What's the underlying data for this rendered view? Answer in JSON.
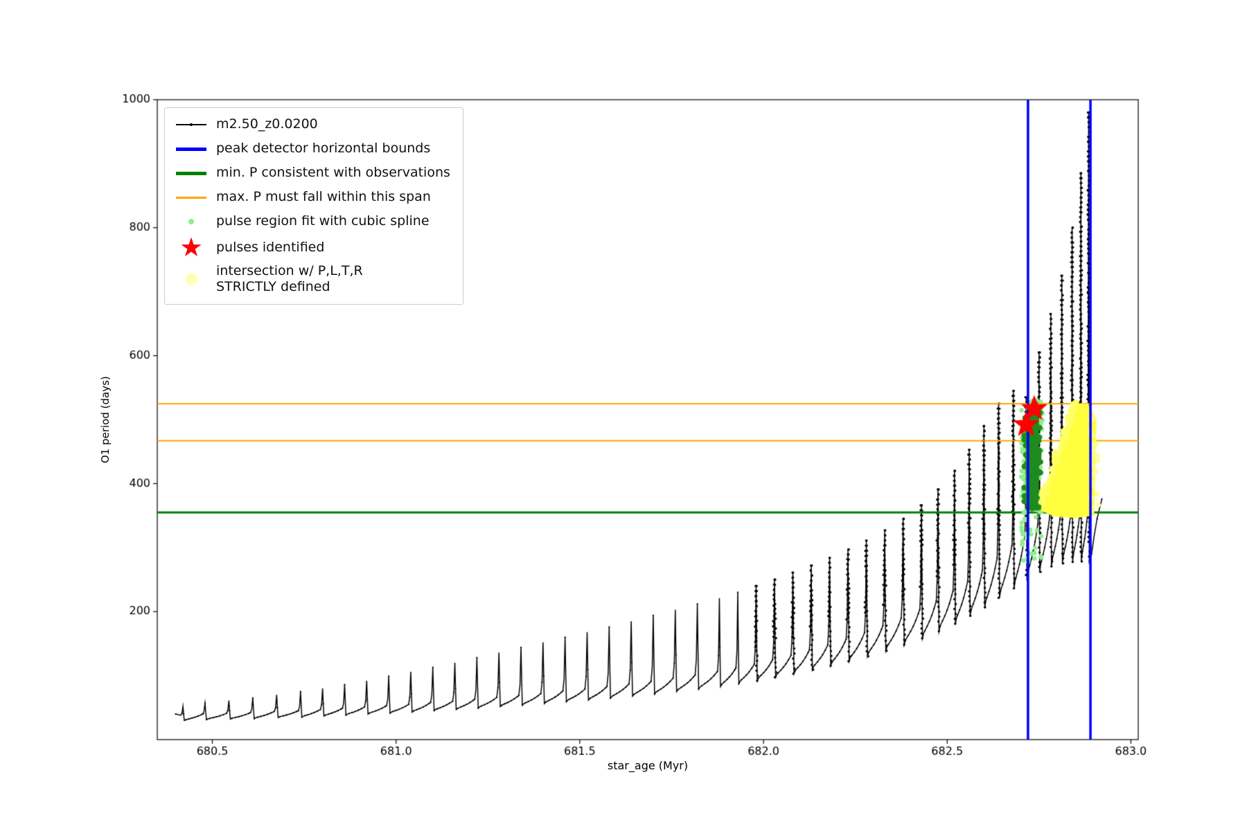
{
  "legend": {
    "position": "upper left",
    "entries": [
      {
        "label": "m2.50_z0.0200",
        "color": "#000000",
        "marker": "line-with-dot"
      },
      {
        "label": "peak detector horizontal bounds",
        "color": "#0000ff",
        "marker": "thick-line"
      },
      {
        "label": "min. P consistent with observations",
        "color": "#008000",
        "marker": "thick-line"
      },
      {
        "label": "max. P must fall within this span",
        "color": "#ffa500",
        "marker": "line"
      },
      {
        "label": "pulse region fit with cubic spline",
        "color": "#90ee90",
        "marker": "small-dot"
      },
      {
        "label": "pulses identified",
        "color": "#ff0000",
        "marker": "star"
      },
      {
        "label": "intersection w/ P,L,T,R\nSTRICTLY defined",
        "color": "#ffffb3",
        "marker": "big-dot"
      }
    ]
  },
  "chart_data": {
    "type": "line",
    "title": "",
    "xlabel": "star_age (Myr)",
    "ylabel": "O1 period (days)",
    "xlim": [
      680.35,
      683.02
    ],
    "ylim": [
      0,
      1000
    ],
    "grid": false,
    "x_ticks": [
      680.5,
      681.0,
      681.5,
      682.0,
      682.5,
      683.0
    ],
    "x_tick_labels": [
      "680.5",
      "681.0",
      "681.5",
      "682.0",
      "682.5",
      "683.0"
    ],
    "y_ticks": [
      200,
      400,
      600,
      800,
      1000
    ],
    "y_tick_labels": [
      "200",
      "400",
      "600",
      "800",
      "1000"
    ],
    "colors": {
      "series": "#000000",
      "peak_detector_bounds": "#0000ff",
      "min_P_line": "#008000",
      "max_P_span": "#ffa500",
      "spline_dots": "#90ee90",
      "spline_core": "#1e8b1e",
      "pulse_star": "#ff0000",
      "intersection_fill": "#ffff3d"
    },
    "series": [
      {
        "name": "m2.50_z0.0200",
        "type": "pulse-train",
        "comment": "each pulse = [star_age_Myr, peak_period_days, pre-pulse_baseline_days]",
        "pulses_xpb": [
          [
            680.42,
            52,
            38
          ],
          [
            680.48,
            57,
            40
          ],
          [
            680.545,
            61,
            41
          ],
          [
            680.61,
            65,
            42
          ],
          [
            680.675,
            70,
            44
          ],
          [
            680.74,
            75,
            45
          ],
          [
            680.8,
            80,
            47
          ],
          [
            680.86,
            86,
            49
          ],
          [
            680.92,
            92,
            51
          ],
          [
            680.98,
            99,
            53
          ],
          [
            681.04,
            106,
            55
          ],
          [
            681.1,
            113,
            58
          ],
          [
            681.16,
            120,
            60
          ],
          [
            681.22,
            128,
            63
          ],
          [
            681.28,
            136,
            66
          ],
          [
            681.34,
            144,
            69
          ],
          [
            681.4,
            152,
            72
          ],
          [
            681.46,
            160,
            76
          ],
          [
            681.52,
            168,
            79
          ],
          [
            681.58,
            176,
            83
          ],
          [
            681.64,
            185,
            87
          ],
          [
            681.7,
            194,
            91
          ],
          [
            681.76,
            203,
            96
          ],
          [
            681.82,
            212,
            101
          ],
          [
            681.88,
            221,
            106
          ],
          [
            681.93,
            230,
            112
          ],
          [
            681.98,
            240,
            118
          ],
          [
            682.03,
            250,
            125
          ],
          [
            682.08,
            261,
            132
          ],
          [
            682.13,
            272,
            140
          ],
          [
            682.18,
            284,
            148
          ],
          [
            682.23,
            297,
            157
          ],
          [
            682.28,
            311,
            167
          ],
          [
            682.33,
            327,
            178
          ],
          [
            682.38,
            345,
            190
          ],
          [
            682.43,
            366,
            203
          ],
          [
            682.475,
            391,
            217
          ],
          [
            682.52,
            420,
            232
          ],
          [
            682.56,
            453,
            248
          ],
          [
            682.6,
            490,
            265
          ],
          [
            682.64,
            525,
            284
          ],
          [
            682.68,
            545,
            303
          ],
          [
            682.715,
            535,
            320
          ],
          [
            682.75,
            605,
            336
          ],
          [
            682.782,
            665,
            347
          ],
          [
            682.812,
            725,
            353
          ],
          [
            682.84,
            800,
            356
          ],
          [
            682.864,
            885,
            357
          ],
          [
            682.885,
            980,
            357
          ]
        ]
      }
    ],
    "peak_detector_bounds_x": [
      682.72,
      682.89
    ],
    "min_P_line_y": 355,
    "max_P_span_y": [
      467,
      525
    ],
    "pulses_identified_xy": [
      [
        682.715,
        492
      ],
      [
        682.737,
        517
      ]
    ],
    "spline_region": {
      "x_range": [
        682.7,
        682.76
      ],
      "scatter_y_range": [
        268,
        532
      ],
      "core_x": [
        682.714,
        682.75
      ],
      "core_y": [
        358,
        515
      ]
    },
    "intersection_region": {
      "polygon_xy": [
        [
          682.755,
          358
        ],
        [
          682.79,
          349
        ],
        [
          682.85,
          346
        ],
        [
          682.9,
          350
        ],
        [
          682.906,
          500
        ],
        [
          682.884,
          525
        ],
        [
          682.842,
          525
        ],
        [
          682.757,
          368
        ]
      ]
    }
  }
}
